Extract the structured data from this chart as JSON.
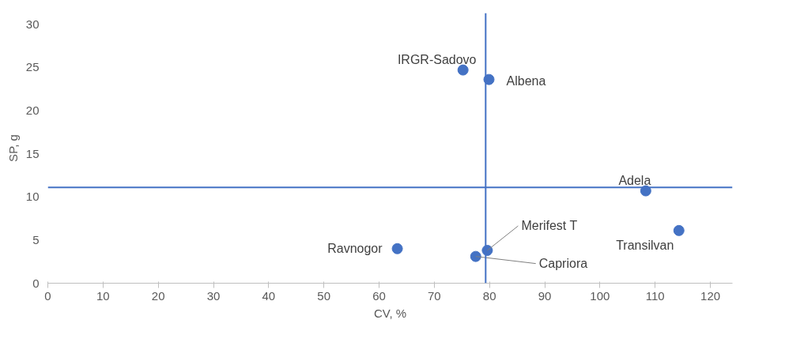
{
  "chart_data": {
    "type": "scatter",
    "xlabel": "CV, %",
    "ylabel": "SP, g",
    "x": [
      75.2,
      79.9,
      108.3,
      114.3,
      63.3,
      79.6,
      77.5
    ],
    "series": [
      {
        "color": "#4472c4",
        "values": [
          24.7,
          23.6,
          10.7,
          6.1,
          4.0,
          3.8,
          3.1
        ]
      }
    ],
    "annotations": [
      {
        "text": "IRGR-Sadovo",
        "x": 75.2,
        "y": 24.7
      },
      {
        "text": "Albena",
        "x": 79.9,
        "y": 23.6
      },
      {
        "text": "Adela",
        "x": 108.3,
        "y": 10.7
      },
      {
        "text": "Transilvan",
        "x": 114.3,
        "y": 6.1
      },
      {
        "text": "Ravnogor",
        "x": 63.3,
        "y": 4.0
      },
      {
        "text": "Merifest T",
        "x": 79.6,
        "y": 3.8
      },
      {
        "text": "Capriora",
        "x": 77.5,
        "y": 3.1
      }
    ],
    "ref_lines": [
      {
        "axis": "x",
        "value": 79.3,
        "color": "#4472c4"
      },
      {
        "axis": "y",
        "value": 11.1,
        "color": "#4472c4"
      }
    ],
    "xlim": [
      0,
      124
    ],
    "ylim": [
      0,
      31.3
    ],
    "xticks": [
      0,
      10,
      20,
      30,
      40,
      50,
      60,
      70,
      80,
      90,
      100,
      110,
      120
    ],
    "yticks": [
      0,
      5,
      10,
      15,
      20,
      25,
      30
    ],
    "marker": "circle",
    "grid": false
  }
}
